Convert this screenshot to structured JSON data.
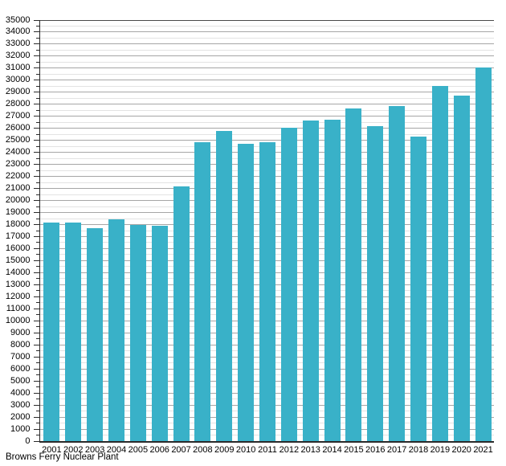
{
  "chart_data": {
    "type": "bar",
    "title": "",
    "caption": "Browns Ferry Nuclear Plant",
    "categories": [
      "2001",
      "2002",
      "2003",
      "2004",
      "2005",
      "2006",
      "2007",
      "2008",
      "2009",
      "2010",
      "2011",
      "2012",
      "2013",
      "2014",
      "2015",
      "2016",
      "2017",
      "2018",
      "2019",
      "2020",
      "2021"
    ],
    "values": [
      18150,
      18200,
      17700,
      18450,
      17950,
      17900,
      21200,
      24850,
      25750,
      24700,
      24850,
      26050,
      26650,
      26750,
      27650,
      26200,
      27850,
      25300,
      29500,
      28750,
      31050
    ],
    "ylim": [
      0,
      35000
    ],
    "y_major_step": 1000,
    "y_minor_step": 500,
    "y_tick_labels": [
      "0",
      "1000",
      "2000",
      "3000",
      "4000",
      "5000",
      "6000",
      "7000",
      "8000",
      "9000",
      "10000",
      "11000",
      "12000",
      "13000",
      "14000",
      "15000",
      "16000",
      "17000",
      "18000",
      "19000",
      "20000",
      "21000",
      "22000",
      "23000",
      "24000",
      "25000",
      "26000",
      "27000",
      "28000",
      "29000",
      "30000",
      "31000",
      "32000",
      "33000",
      "34000",
      "35000"
    ],
    "grid": true,
    "legend": "none",
    "colors": {
      "bar": "#39b1c8",
      "major_grid": "#a6a6a6",
      "minor_grid": "#e3e3e3",
      "axis": "#2a2a2a",
      "text": "#000000"
    }
  }
}
